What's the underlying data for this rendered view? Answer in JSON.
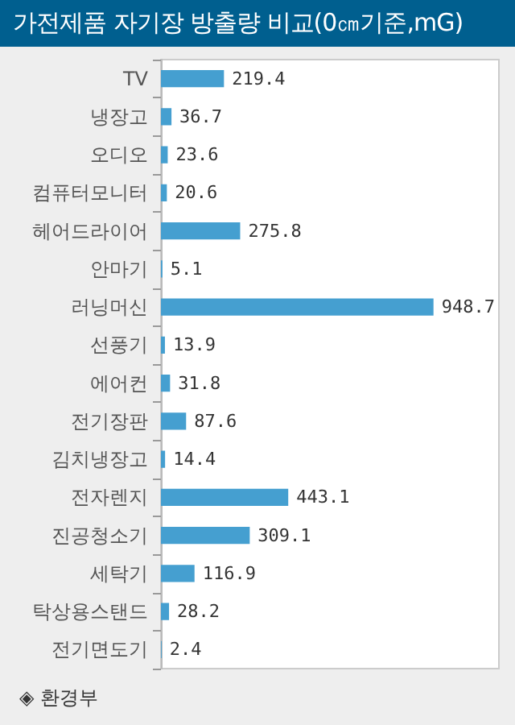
{
  "chart_data": {
    "type": "bar",
    "orientation": "horizontal",
    "title": "가전제품 자기장 방출량 비교(0㎝기준,mG)",
    "categories": [
      "TV",
      "냉장고",
      "오디오",
      "컴퓨터모니터",
      "헤어드라이어",
      "안마기",
      "러닝머신",
      "선풍기",
      "에어컨",
      "전기장판",
      "김치냉장고",
      "전자렌지",
      "진공청소기",
      "세탁기",
      "탁상용스탠드",
      "전기면도기"
    ],
    "values": [
      219.4,
      36.7,
      23.6,
      20.6,
      275.8,
      5.1,
      948.7,
      13.9,
      31.8,
      87.6,
      14.4,
      443.1,
      309.1,
      116.9,
      28.2,
      2.4
    ],
    "color": "#459fd0",
    "data_labels": true,
    "tick_labels": "y",
    "annotations": [
      "◈ 환경부"
    ]
  }
}
